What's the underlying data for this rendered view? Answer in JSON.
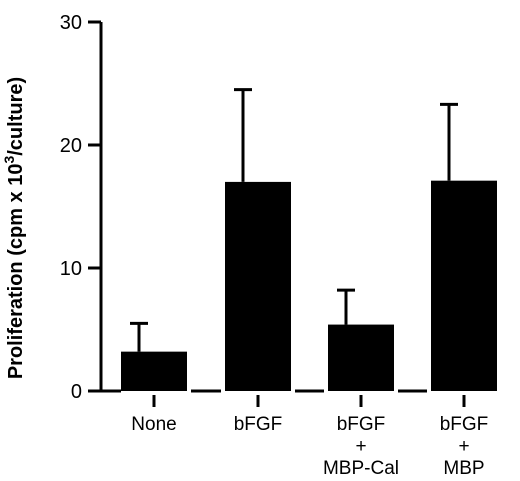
{
  "chart_data": {
    "type": "bar",
    "ylabel": {
      "prefix": "Proliferation  (cpm  x  10",
      "superscript": "3",
      "suffix": "/culture)"
    },
    "ylim": [
      0,
      30
    ],
    "yticks": [
      "0",
      "10",
      "20",
      "30"
    ],
    "categories": [
      [
        "None"
      ],
      [
        "bFGF"
      ],
      [
        "bFGF",
        "+",
        "MBP-Cal"
      ],
      [
        "bFGF",
        "+",
        "MBP"
      ]
    ],
    "values": [
      3.2,
      17.0,
      5.4,
      17.1
    ],
    "errors": [
      2.3,
      7.5,
      2.8,
      6.2
    ],
    "bar_color": "#000000",
    "grid": false,
    "legend": "none"
  }
}
